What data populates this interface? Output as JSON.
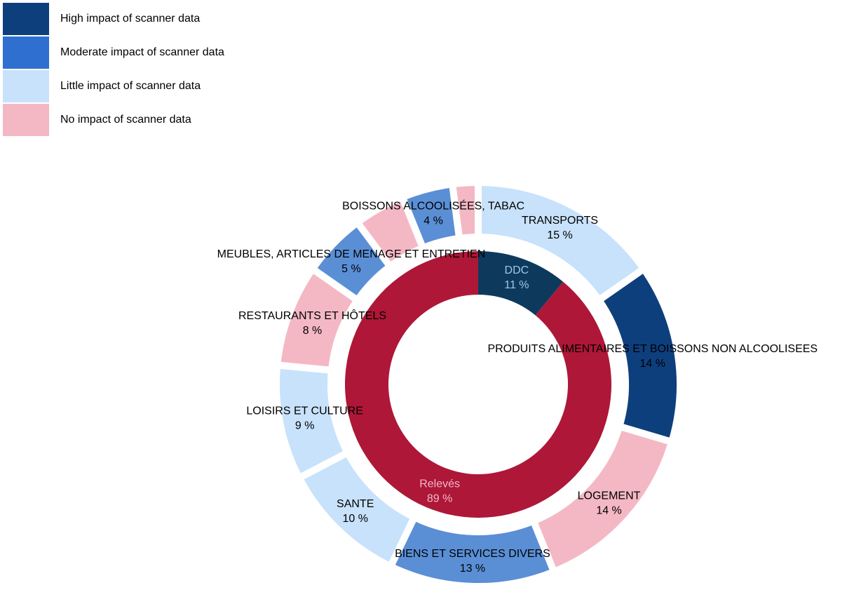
{
  "chart_data": {
    "type": "donut",
    "legend": [
      {
        "name": "High impact of scanner data",
        "color": "#0e3f7d"
      },
      {
        "name": "Moderate impact of scanner data",
        "color": "#2f6fcf"
      },
      {
        "name": "Little impact of scanner data",
        "color": "#c8e2fb"
      },
      {
        "name": "No impact of scanner data",
        "color": "#f4b8c4"
      }
    ],
    "outer": {
      "categories": [
        "TRANSPORTS",
        "PRODUITS ALIMENTAIRES ET BOISSONS NON ALCOOLISEES",
        "LOGEMENT",
        "BIENS ET SERVICES DIVERS",
        "SANTE",
        "LOISIRS ET CULTURE",
        "RESTAURANTS ET HÔTELS",
        "MEUBLES, ARTICLES DE MENAGE ET ENTRETIEN",
        null,
        "BOISSONS ALCOOLISÉES, TABAC",
        null
      ],
      "values": [
        15,
        14,
        14,
        13,
        10,
        9,
        8,
        5,
        4,
        4,
        2
      ],
      "value_labels": [
        "15 %",
        "14 %",
        "14 %",
        "13 %",
        "10 %",
        "9 %",
        "8 %",
        "5 %",
        null,
        "4 %",
        null
      ],
      "colors": [
        "#c8e2fb",
        "#0e3f7d",
        "#f4b8c4",
        "#5a8fd6",
        "#c8e2fb",
        "#c8e2fb",
        "#f4b8c4",
        "#5a8fd6",
        "#f4b8c4",
        "#5a8fd6",
        "#f4b8c4"
      ]
    },
    "inner": {
      "categories": [
        "DDC",
        "Relevés"
      ],
      "values": [
        11,
        89
      ],
      "value_labels": [
        "11 %",
        "89 %"
      ],
      "colors": [
        "#0d3a5c",
        "#ae1737"
      ],
      "label_colors": [
        "#9ec6ee",
        "#f0b8cc"
      ]
    }
  }
}
